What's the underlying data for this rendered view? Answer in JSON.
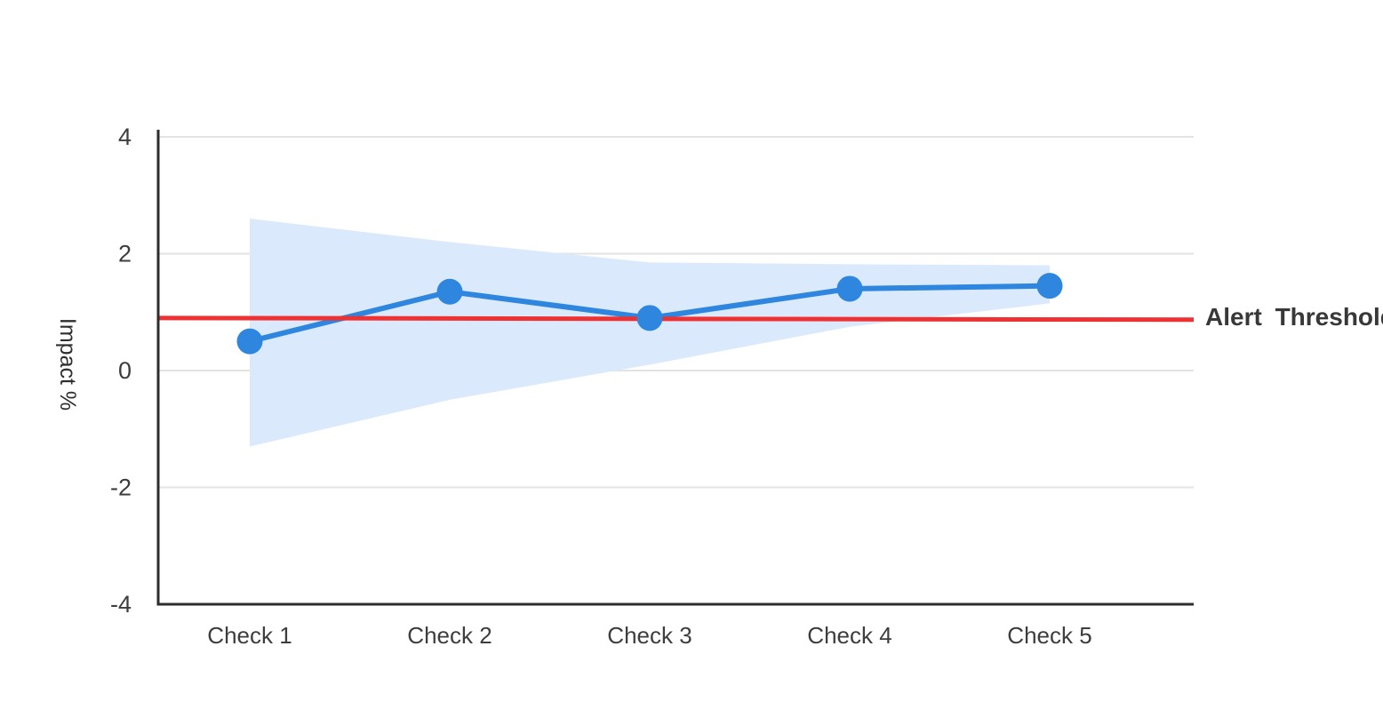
{
  "chart_data": {
    "type": "line",
    "title": "",
    "categories": [
      "Check 1",
      "Check 2",
      "Check 3",
      "Check 4",
      "Check 5"
    ],
    "series": [
      {
        "name": "Impact",
        "values": [
          0.5,
          1.35,
          0.9,
          1.4,
          1.45
        ]
      }
    ],
    "band": {
      "name": "confidence-interval",
      "upper": [
        2.6,
        2.2,
        1.85,
        1.82,
        1.8
      ],
      "lower": [
        -1.3,
        -0.5,
        0.1,
        0.75,
        1.15
      ]
    },
    "threshold": {
      "label": "Alert Threshold",
      "start": 0.9,
      "end": 0.87
    },
    "xlabel": "",
    "ylabel": "Impact %",
    "ylim": [
      -4,
      4
    ],
    "yticks": [
      4,
      2,
      0,
      -2,
      -4
    ],
    "grid": true,
    "legend_position": "none"
  },
  "colors": {
    "line": "#2E86DE",
    "marker": "#2E86DE",
    "band": "#DBE9FC",
    "threshold": "#EE3133",
    "grid": "#E3E3E3",
    "axis": "#2D2D2D",
    "tick_text": "#3D3D3D"
  }
}
